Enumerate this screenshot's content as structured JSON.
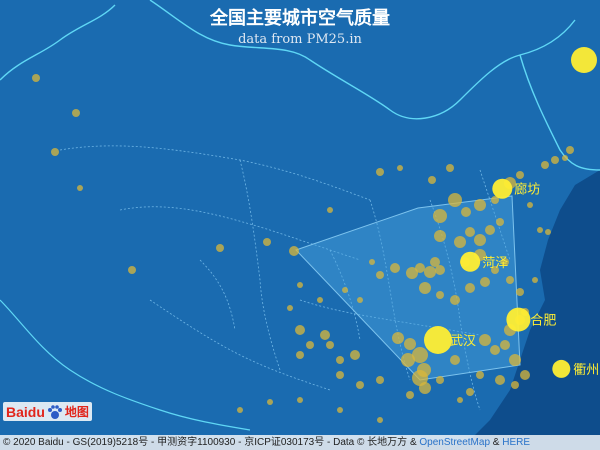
{
  "title": "全国主要城市空气质量",
  "subtitle": "data from PM25.in",
  "logo": {
    "text": "Baidu",
    "suffix": "地图"
  },
  "copyright": {
    "text": "© 2020 Baidu - GS(2019)5218号 - 甲测资字1100930 - 京ICP证030173号 - Data © 长地万方 &",
    "link1": "OpenStreetMap",
    "amp": "&",
    "link2": "HERE"
  },
  "colors": {
    "sea": "#0e4d8c",
    "land": "#1a6bb0",
    "border": "#5fd7f5",
    "point": "#d9b73a",
    "highlight": "#ffee33",
    "region_fill": "#4aa3df"
  },
  "labeled_cities": [
    {
      "name": "廊坊",
      "lon": 116.7,
      "lat": 39.5
    },
    {
      "name": "菏泽",
      "lon": 115.5,
      "lat": 35.2
    },
    {
      "name": "合肥",
      "lon": 117.3,
      "lat": 31.8
    },
    {
      "name": "武汉",
      "lon": 114.3,
      "lat": 30.6
    },
    {
      "name": "衢州",
      "lon": 118.9,
      "lat": 28.9
    }
  ]
}
